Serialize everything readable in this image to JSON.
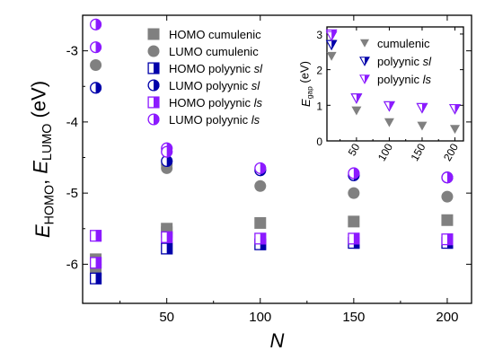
{
  "chart_data": [
    {
      "type": "scatter",
      "title": "",
      "xlabel": "N",
      "ylabel": {
        "parts": [
          {
            "text": "E",
            "style": "italic"
          },
          {
            "text": "HOMO",
            "style": "sub"
          },
          {
            "text": ", ",
            "style": "normal"
          },
          {
            "text": "E",
            "style": "italic"
          },
          {
            "text": "LUMO",
            "style": "sub"
          },
          {
            "text": " (eV)",
            "style": "normal"
          }
        ]
      },
      "xlim": [
        5,
        213
      ],
      "ylim": [
        -6.55,
        -2.5
      ],
      "xticks": [
        50,
        100,
        150,
        200
      ],
      "yticks": [
        -3,
        -4,
        -5,
        -6
      ],
      "ytick_labels": [
        "-3",
        "-4",
        "-5",
        "-6"
      ],
      "grid": false,
      "legend": {
        "position": "top-center",
        "entries": [
          {
            "series": 0,
            "parts": [
              {
                "text": "HOMO cumulenic",
                "style": "normal"
              }
            ]
          },
          {
            "series": 1,
            "parts": [
              {
                "text": "LUMO cumulenic",
                "style": "normal"
              }
            ]
          },
          {
            "series": 2,
            "parts": [
              {
                "text": "HOMO polyynic ",
                "style": "normal"
              },
              {
                "text": "sl",
                "style": "italic"
              }
            ]
          },
          {
            "series": 3,
            "parts": [
              {
                "text": "LUMO polyynic ",
                "style": "normal"
              },
              {
                "text": "sl",
                "style": "italic"
              }
            ]
          },
          {
            "series": 4,
            "parts": [
              {
                "text": "HOMO polyynic ",
                "style": "normal"
              },
              {
                "text": "ls",
                "style": "italic"
              }
            ]
          },
          {
            "series": 5,
            "parts": [
              {
                "text": "LUMO polyynic ",
                "style": "normal"
              },
              {
                "text": "ls",
                "style": "italic"
              }
            ]
          }
        ]
      },
      "series": [
        {
          "name": "HOMO cumulenic",
          "marker": "square",
          "color": "#808080",
          "x": [
            12,
            12,
            50,
            50,
            100,
            150,
            200
          ],
          "y": [
            -5.93,
            -6.08,
            -5.5,
            -5.55,
            -5.42,
            -5.4,
            -5.38
          ]
        },
        {
          "name": "LUMO cumulenic",
          "marker": "circle",
          "color": "#808080",
          "x": [
            12,
            50,
            50,
            100,
            150,
            200
          ],
          "y": [
            -3.2,
            -4.6,
            -4.65,
            -4.9,
            -5.0,
            -5.05
          ]
        },
        {
          "name": "HOMO polyynic sl",
          "marker": "square-half",
          "color": "#0000aa",
          "x": [
            12,
            50,
            100,
            150,
            200
          ],
          "y": [
            -6.2,
            -5.78,
            -5.72,
            -5.7,
            -5.7
          ]
        },
        {
          "name": "LUMO polyynic sl",
          "marker": "circle-half",
          "color": "#0000aa",
          "x": [
            12,
            50,
            100,
            150,
            200
          ],
          "y": [
            -3.52,
            -4.55,
            -4.68,
            -4.75,
            -4.78
          ]
        },
        {
          "name": "HOMO polyynic ls",
          "marker": "square-half",
          "color": "#8c1aff",
          "x": [
            12,
            12,
            50,
            100,
            150,
            200
          ],
          "y": [
            -5.6,
            -5.98,
            -5.62,
            -5.64,
            -5.64,
            -5.65
          ]
        },
        {
          "name": "LUMO polyynic ls",
          "marker": "circle-half",
          "color": "#8c1aff",
          "x": [
            12,
            12,
            50,
            50,
            100,
            150,
            200
          ],
          "y": [
            -2.63,
            -2.95,
            -4.37,
            -4.42,
            -4.65,
            -4.72,
            -4.78
          ]
        }
      ]
    },
    {
      "type": "scatter",
      "title": "",
      "xlabel": "",
      "ylabel": {
        "parts": [
          {
            "text": "E",
            "style": "italic"
          },
          {
            "text": "gap",
            "style": "sub"
          },
          {
            "text": " (eV)",
            "style": "normal"
          }
        ]
      },
      "xlim": [
        5,
        213
      ],
      "ylim": [
        0,
        3.2
      ],
      "xticks": [
        50,
        100,
        150,
        200
      ],
      "yticks": [
        0,
        1,
        2,
        3
      ],
      "ytick_labels": [
        "0",
        "1",
        "2",
        "3"
      ],
      "grid": false,
      "legend": {
        "position": "top-right",
        "entries": [
          {
            "series": 0,
            "parts": [
              {
                "text": "cumulenic",
                "style": "normal"
              }
            ]
          },
          {
            "series": 1,
            "parts": [
              {
                "text": "polyynic ",
                "style": "normal"
              },
              {
                "text": "sl",
                "style": "italic"
              }
            ]
          },
          {
            "series": 2,
            "parts": [
              {
                "text": "polyynic ",
                "style": "normal"
              },
              {
                "text": "ls",
                "style": "italic"
              }
            ]
          }
        ]
      },
      "series": [
        {
          "name": "cumulenic",
          "marker": "triangle-down",
          "color": "#808080",
          "x": [
            12,
            12,
            50,
            100,
            150,
            200
          ],
          "y": [
            2.72,
            2.38,
            0.85,
            0.52,
            0.42,
            0.33
          ]
        },
        {
          "name": "polyynic sl",
          "marker": "triangle-down-half",
          "color": "#0000aa",
          "x": [
            12,
            50,
            100,
            150,
            200
          ],
          "y": [
            2.7,
            1.2,
            0.98,
            0.93,
            0.9
          ]
        },
        {
          "name": "polyynic ls",
          "marker": "triangle-down-half",
          "color": "#8c1aff",
          "x": [
            12,
            12,
            50,
            100,
            150,
            200
          ],
          "y": [
            3.0,
            2.95,
            1.2,
            0.98,
            0.93,
            0.9
          ]
        }
      ]
    }
  ]
}
